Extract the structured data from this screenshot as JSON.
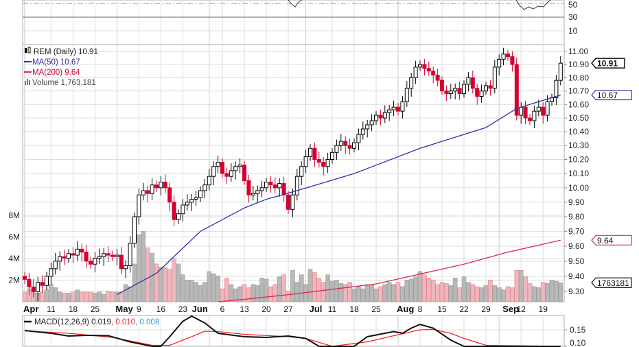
{
  "chart_data": {
    "type": "candlestick",
    "symbol_label": "REM (Daily)",
    "last_price": "10.91",
    "price_scale": "log",
    "ylim": [
      9.22,
      11.05
    ],
    "price_ticks": [
      "11.00",
      "10.90",
      "10.80",
      "10.70",
      "10.60",
      "10.50",
      "10.40",
      "10.30",
      "10.20",
      "10.10",
      "10.00",
      "9.90",
      "9.80",
      "9.70",
      "9.60",
      "9.50",
      "9.40",
      "9.30"
    ],
    "volume_ticks": [
      {
        "label": "8M",
        "v": 8
      },
      {
        "label": "6M",
        "v": 6
      },
      {
        "label": "4M",
        "v": 4
      },
      {
        "label": "2M",
        "v": 2
      }
    ],
    "rsi_ticks": [
      {
        "label": "50",
        "v": 50
      },
      {
        "label": "30",
        "v": 30
      },
      {
        "label": "10",
        "v": 10
      }
    ],
    "x_labels": [
      {
        "label": "Apr",
        "day": 0,
        "bold": true
      },
      {
        "label": "11",
        "day": 6
      },
      {
        "label": "18",
        "day": 11
      },
      {
        "label": "25",
        "day": 16
      },
      {
        "label": "May",
        "day": 21,
        "bold": true
      },
      {
        "label": "9",
        "day": 26
      },
      {
        "label": "16",
        "day": 31
      },
      {
        "label": "23",
        "day": 36
      },
      {
        "label": "Jun",
        "day": 42,
        "bold": true
      },
      {
        "label": "6",
        "day": 45
      },
      {
        "label": "13",
        "day": 50
      },
      {
        "label": "20",
        "day": 55
      },
      {
        "label": "27",
        "day": 60
      },
      {
        "label": "Jul",
        "day": 64,
        "bold": true
      },
      {
        "label": "11",
        "day": 70
      },
      {
        "label": "18",
        "day": 75
      },
      {
        "label": "25",
        "day": 80
      },
      {
        "label": "Aug",
        "day": 85,
        "bold": true
      },
      {
        "label": "8",
        "day": 90
      },
      {
        "label": "15",
        "day": 95
      },
      {
        "label": "22",
        "day": 100
      },
      {
        "label": "29",
        "day": 105
      },
      {
        "label": "Sep",
        "day": 108,
        "bold": true
      },
      {
        "label": "12",
        "day": 113
      },
      {
        "label": "19",
        "day": 118
      }
    ],
    "closes": [
      9.38,
      9.33,
      9.3,
      9.36,
      9.34,
      9.4,
      9.45,
      9.5,
      9.53,
      9.52,
      9.55,
      9.54,
      9.58,
      9.56,
      9.5,
      9.48,
      9.52,
      9.53,
      9.55,
      9.54,
      9.53,
      9.54,
      9.45,
      9.47,
      9.62,
      9.8,
      9.95,
      9.98,
      9.96,
      10.02,
      10.0,
      10.04,
      10.0,
      9.9,
      9.78,
      9.82,
      9.88,
      9.9,
      9.92,
      9.93,
      9.98,
      10.02,
      10.08,
      10.15,
      10.18,
      10.1,
      10.08,
      10.12,
      10.15,
      10.16,
      10.05,
      9.95,
      9.96,
      9.98,
      10.0,
      10.04,
      10.02,
      10.0,
      10.03,
      9.95,
      9.85,
      9.95,
      10.08,
      10.15,
      10.22,
      10.28,
      10.2,
      10.18,
      10.15,
      10.2,
      10.25,
      10.3,
      10.33,
      10.3,
      10.28,
      10.32,
      10.38,
      10.42,
      10.45,
      10.48,
      10.52,
      10.5,
      10.54,
      10.56,
      10.58,
      10.55,
      10.62,
      10.72,
      10.8,
      10.88,
      10.9,
      10.87,
      10.85,
      10.82,
      10.78,
      10.7,
      10.68,
      10.7,
      10.72,
      10.68,
      10.75,
      10.8,
      10.72,
      10.66,
      10.7,
      10.74,
      10.72,
      10.88,
      10.94,
      10.98,
      10.96,
      10.9,
      10.52,
      10.58,
      10.5,
      10.48,
      10.55,
      10.58,
      10.52,
      10.62,
      10.65,
      10.78,
      10.91
    ],
    "volume_millions": [
      0.9,
      1.2,
      1.0,
      0.8,
      0.9,
      1.1,
      1.6,
      1.3,
      0.9,
      0.8,
      0.8,
      0.9,
      1.1,
      0.9,
      0.9,
      0.9,
      0.8,
      0.9,
      0.7,
      1.0,
      0.9,
      0.9,
      0.9,
      1.6,
      1.4,
      3.5,
      6.2,
      6.5,
      5.0,
      4.5,
      3.5,
      3.2,
      3.2,
      3.0,
      4.0,
      3.5,
      2.5,
      2.0,
      2.0,
      1.8,
      1.5,
      1.8,
      2.8,
      2.6,
      2.4,
      1.2,
      2.2,
      1.6,
      1.2,
      1.4,
      1.6,
      1.3,
      1.6,
      1.5,
      2.2,
      2.1,
      1.4,
      1.6,
      2.3,
      2.5,
      1.0,
      2.9,
      1.8,
      2.5,
      1.6,
      3.0,
      2.7,
      2.2,
      1.8,
      2.5,
      1.9,
      2.0,
      1.7,
      1.6,
      1.8,
      1.2,
      1.4,
      1.2,
      1.6,
      1.6,
      1.2,
      1.4,
      1.6,
      1.8,
      1.6,
      1.8,
      1.4,
      2.0,
      2.1,
      2.3,
      2.8,
      2.5,
      2.2,
      2.0,
      1.6,
      1.8,
      1.7,
      1.5,
      2.2,
      1.3,
      2.3,
      1.8,
      1.6,
      1.4,
      1.3,
      1.5,
      2.0,
      1.5,
      1.3,
      1.1,
      1.4,
      1.3,
      2.9,
      2.9,
      2.3,
      1.7,
      1.4,
      1.3,
      1.8,
      1.7,
      2.0,
      1.9,
      1.76
    ],
    "ma50": [
      [
        21,
        9.28
      ],
      [
        30,
        9.42
      ],
      [
        40,
        9.7
      ],
      [
        50,
        9.86
      ],
      [
        55,
        9.92
      ],
      [
        62,
        9.98
      ],
      [
        75,
        10.1
      ],
      [
        90,
        10.28
      ],
      [
        105,
        10.43
      ],
      [
        112,
        10.57
      ],
      [
        122,
        10.67
      ]
    ],
    "ma200": [
      [
        44,
        9.22
      ],
      [
        50,
        9.25
      ],
      [
        60,
        9.28
      ],
      [
        80,
        9.35
      ],
      [
        100,
        9.48
      ],
      [
        110,
        9.56
      ],
      [
        122,
        9.64
      ]
    ],
    "macd": [
      [
        0,
        0.148
      ],
      [
        6,
        0.14
      ],
      [
        10,
        0.132
      ],
      [
        14,
        0.134
      ],
      [
        19,
        0.133
      ],
      [
        24,
        0.115
      ],
      [
        29,
        0.1
      ],
      [
        31,
        0.1
      ],
      [
        33,
        0.13
      ],
      [
        36,
        0.175
      ],
      [
        38,
        0.19
      ],
      [
        41,
        0.17
      ],
      [
        44,
        0.14
      ],
      [
        50,
        0.13
      ],
      [
        55,
        0.128
      ],
      [
        60,
        0.132
      ],
      [
        64,
        0.125
      ],
      [
        67,
        0.1
      ],
      [
        70,
        0.09
      ],
      [
        75,
        0.1
      ],
      [
        78,
        0.13
      ],
      [
        82,
        0.14
      ],
      [
        84,
        0.145
      ],
      [
        86,
        0.14
      ],
      [
        88,
        0.155
      ],
      [
        90,
        0.166
      ],
      [
        93,
        0.155
      ],
      [
        97,
        0.12
      ],
      [
        100,
        0.1
      ],
      [
        105,
        0.09
      ],
      [
        122,
        0.019
      ]
    ],
    "macd_signal": [
      [
        0,
        0.147
      ],
      [
        10,
        0.14
      ],
      [
        20,
        0.128
      ],
      [
        29,
        0.105
      ],
      [
        33,
        0.105
      ],
      [
        38,
        0.13
      ],
      [
        41,
        0.146
      ],
      [
        44,
        0.145
      ],
      [
        50,
        0.137
      ],
      [
        60,
        0.13
      ],
      [
        64,
        0.125
      ],
      [
        70,
        0.1
      ],
      [
        78,
        0.115
      ],
      [
        83,
        0.13
      ],
      [
        90,
        0.15
      ],
      [
        93,
        0.151
      ],
      [
        97,
        0.14
      ],
      [
        100,
        0.125
      ],
      [
        105,
        0.105
      ],
      [
        122,
        0.01
      ]
    ],
    "macd_ticks": [
      {
        "label": "0.15",
        "v": 0.15
      },
      {
        "label": "0.10",
        "v": 0.1
      }
    ],
    "colors": {
      "up": "#000000",
      "down": "#d5002f",
      "ma50": "#2f2fa8",
      "ma200": "#e0284a",
      "vol_up": "#b8b8b8",
      "vol_down": "#efb6bd",
      "macd": "#111111",
      "signal": "#ff2020",
      "hist": "#3399cc",
      "grid": "#dcdcdc"
    }
  },
  "legend": {
    "symbol": "REM (Daily) 10.91",
    "ma50": "MA(50) 10.67",
    "ma200": "MA(200) 9.64",
    "volume": "Volume 1,763,181",
    "macd_label": "MACD(12,26,9) 0.019",
    "macd_signal": ", 0.010",
    "macd_hist": ", 0.008"
  },
  "tags": {
    "price": "10.91",
    "ma50": "10.67",
    "ma200": "9.64",
    "volume": "1763181"
  }
}
